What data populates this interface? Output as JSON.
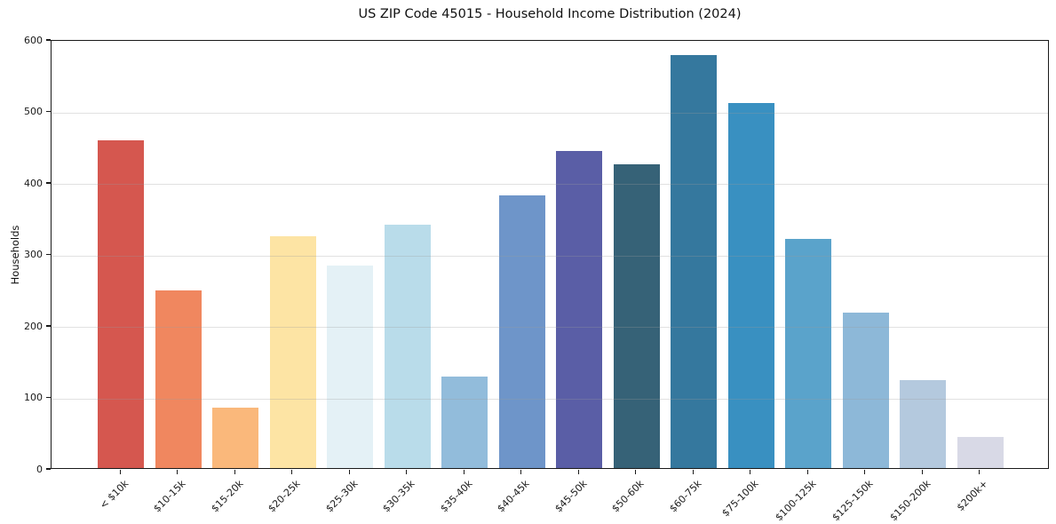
{
  "figure": {
    "title": "US ZIP Code 45015 - Household Income Distribution (2024)",
    "ylabel": "Households"
  },
  "chart_data": {
    "type": "bar",
    "title": "US ZIP Code 45015 - Household Income Distribution (2024)",
    "xlabel": "",
    "ylabel": "Households",
    "ylim": [
      0,
      600
    ],
    "yticks": [
      0,
      100,
      200,
      300,
      400,
      500,
      600
    ],
    "grid": "horizontal-only",
    "legend": "none",
    "categories": [
      "< $10k",
      "$10-15k",
      "$15-20k",
      "$20-25k",
      "$25-30k",
      "$30-35k",
      "$35-40k",
      "$40-45k",
      "$45-50k",
      "$50-60k",
      "$60-75k",
      "$75-100k",
      "$100-125k",
      "$125-150k",
      "$150-200k",
      "$200k+"
    ],
    "values": [
      459,
      249,
      85,
      324,
      283,
      341,
      128,
      382,
      443,
      425,
      578,
      510,
      320,
      218,
      123,
      43
    ],
    "bar_colors": [
      "#d5574f",
      "#f0875f",
      "#fab87b",
      "#fde4a4",
      "#e4f1f6",
      "#b9dcea",
      "#92bcdb",
      "#6e95c9",
      "#5a5ea6",
      "#366277",
      "#35789e",
      "#3990c1",
      "#5aa3cb",
      "#8db8d8",
      "#b4c9de",
      "#d8d9e6"
    ]
  }
}
